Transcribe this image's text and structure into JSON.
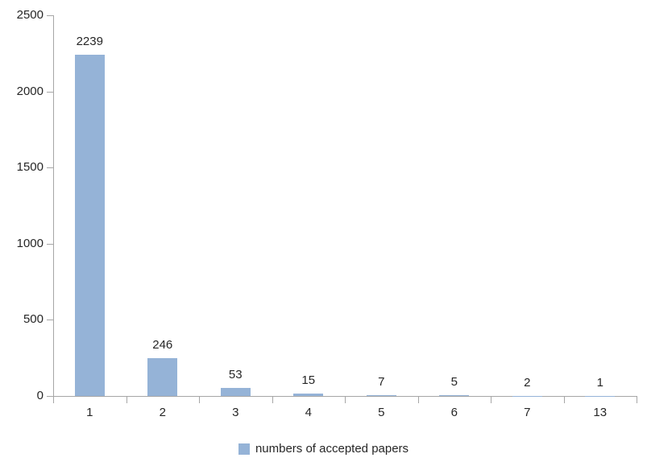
{
  "chart_data": {
    "type": "bar",
    "categories": [
      "1",
      "2",
      "3",
      "4",
      "5",
      "6",
      "7",
      "13"
    ],
    "values": [
      2239,
      246,
      53,
      15,
      7,
      5,
      2,
      1
    ],
    "series_name": "numbers of accepted papers",
    "title": "",
    "xlabel": "",
    "ylabel": "",
    "ylim": [
      0,
      2500
    ],
    "yticks": [
      0,
      500,
      1000,
      1500,
      2000,
      2500
    ],
    "grid": false,
    "data_labels": true,
    "legend_position": "bottom",
    "colors": {
      "bar_fill": "#95B3D7",
      "axis": "#A6A6A6",
      "text": "#262626",
      "background": "#FFFFFF"
    }
  }
}
